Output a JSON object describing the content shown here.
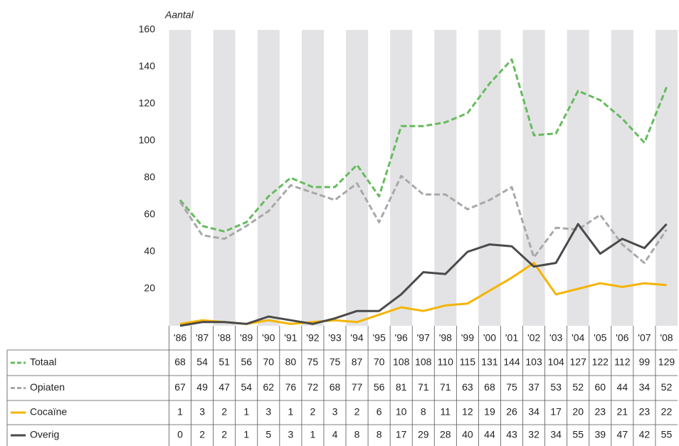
{
  "chart_data": {
    "type": "line",
    "y_label": "Aantal",
    "categories": [
      "'86",
      "'87",
      "'88",
      "'89",
      "'90",
      "'91",
      "'92",
      "'93",
      "'94",
      "'95",
      "'96",
      "'97",
      "'98",
      "'99",
      "'00",
      "'01",
      "'02",
      "'03",
      "'04",
      "'05",
      "'06",
      "'07",
      "'08"
    ],
    "series": [
      {
        "name": "Totaal",
        "color": "#66bb5e",
        "dashed": true,
        "values": [
          68,
          54,
          51,
          56,
          70,
          80,
          75,
          75,
          87,
          70,
          108,
          108,
          110,
          115,
          131,
          144,
          103,
          104,
          127,
          122,
          112,
          99,
          129
        ]
      },
      {
        "name": "Opiaten",
        "color": "#a8a8a8",
        "dashed": true,
        "values": [
          67,
          49,
          47,
          54,
          62,
          76,
          72,
          68,
          77,
          56,
          81,
          71,
          71,
          63,
          68,
          75,
          37,
          53,
          52,
          60,
          44,
          34,
          52
        ]
      },
      {
        "name": "Cocaïne",
        "color": "#f5b400",
        "dashed": false,
        "values": [
          1,
          3,
          2,
          1,
          3,
          1,
          2,
          3,
          2,
          6,
          10,
          8,
          11,
          12,
          19,
          26,
          34,
          17,
          20,
          23,
          21,
          23,
          22
        ]
      },
      {
        "name": "Overig",
        "color": "#4a4a4a",
        "dashed": false,
        "values": [
          0,
          2,
          2,
          1,
          5,
          3,
          1,
          4,
          8,
          8,
          17,
          29,
          28,
          40,
          44,
          43,
          32,
          34,
          55,
          39,
          47,
          42,
          55
        ]
      }
    ],
    "ylim": [
      0,
      160
    ],
    "yticks": [
      20,
      40,
      60,
      80,
      100,
      120,
      140,
      160
    ],
    "grid": false
  }
}
